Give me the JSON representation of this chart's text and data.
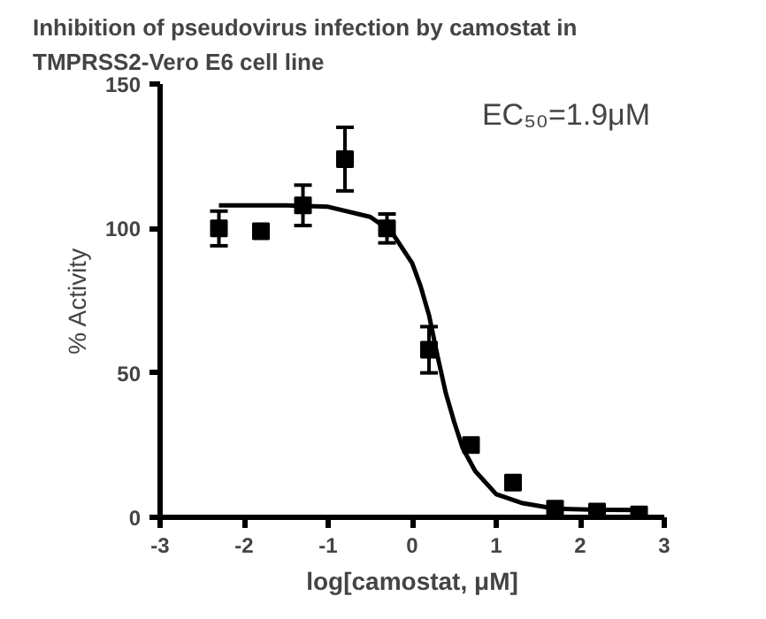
{
  "chart_data": {
    "type": "scatter",
    "title": "Inhibition of pseudovirus infection by camostat in TMPRSS2-Vero E6 cell line",
    "xlabel": "log[camostat, μM]",
    "ylabel": "% Activity",
    "xlim": [
      -3,
      3
    ],
    "xticks": [
      -3,
      -2,
      -1,
      0,
      1,
      2,
      3
    ],
    "ylim": [
      0,
      150
    ],
    "yticks": [
      0,
      50,
      100,
      150
    ],
    "grid": false,
    "annotations": [
      "EC₅₀=1.9μM"
    ],
    "series": [
      {
        "marker": "square",
        "color": "#000000",
        "x": [
          -2.3,
          -1.8,
          -1.3,
          -0.8,
          -0.3,
          0.2,
          0.7,
          1.2,
          1.7,
          2.2,
          2.7
        ],
        "values": [
          100,
          99,
          108,
          124,
          100,
          58,
          25,
          12,
          3,
          2,
          1
        ],
        "errors": [
          6,
          null,
          7,
          11,
          5,
          8,
          null,
          null,
          null,
          null,
          null
        ]
      },
      {
        "type": "line",
        "marker": "none",
        "line_style": "solid",
        "color": "#000000",
        "x": [
          -2.3,
          -1.5,
          -1,
          -0.5,
          -0.25,
          0,
          0.1,
          0.2,
          0.3,
          0.4,
          0.5,
          0.6,
          0.75,
          1,
          1.3,
          1.7,
          2.2,
          2.7
        ],
        "values": [
          108,
          108,
          107.5,
          104,
          99,
          88,
          80,
          70,
          56,
          43,
          33,
          24,
          16,
          8,
          5,
          3,
          2.6,
          2.5
        ]
      }
    ]
  }
}
